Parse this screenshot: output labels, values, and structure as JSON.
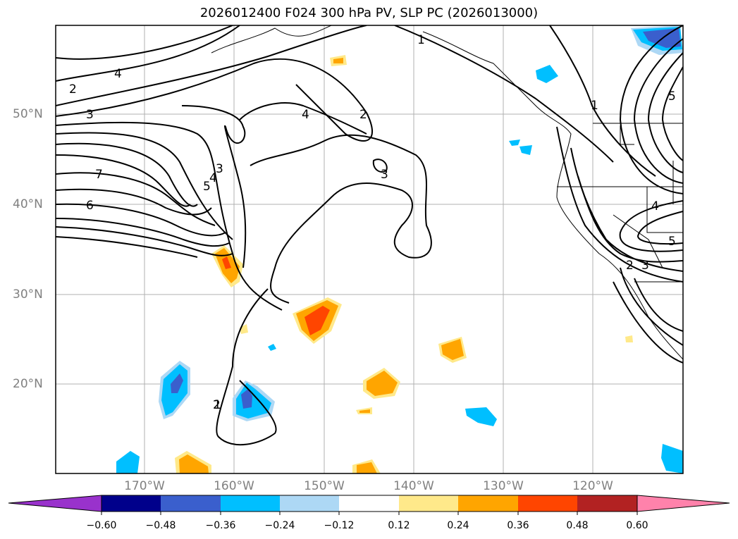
{
  "title": "2026012400 F024 300 hPa PV, SLP PC (2026013000)",
  "lat_labels": [
    "50°N",
    "40°N",
    "30°N",
    "20°N"
  ],
  "lon_labels": [
    "170°W",
    "160°W",
    "150°W",
    "140°W",
    "130°W",
    "120°W"
  ],
  "colorbar": {
    "ticks": [
      "−0.60",
      "−0.48",
      "−0.36",
      "−0.24",
      "−0.12",
      "0.12",
      "0.24",
      "0.36",
      "0.48",
      "0.60"
    ],
    "colors": [
      "#9932cc",
      "#00008b",
      "#3a5fcd",
      "#00bfff",
      "#add8f5",
      "#ffffff",
      "#ffe98a",
      "#ffa500",
      "#ff4500",
      "#b22222",
      "#ff82ab"
    ]
  },
  "contour_labels": [
    "1",
    "2",
    "4",
    "3",
    "2",
    "4",
    "3",
    "7",
    "6",
    "3",
    "4",
    "5",
    "2",
    "1",
    "1",
    "5",
    "4",
    "5",
    "2",
    "3"
  ]
}
